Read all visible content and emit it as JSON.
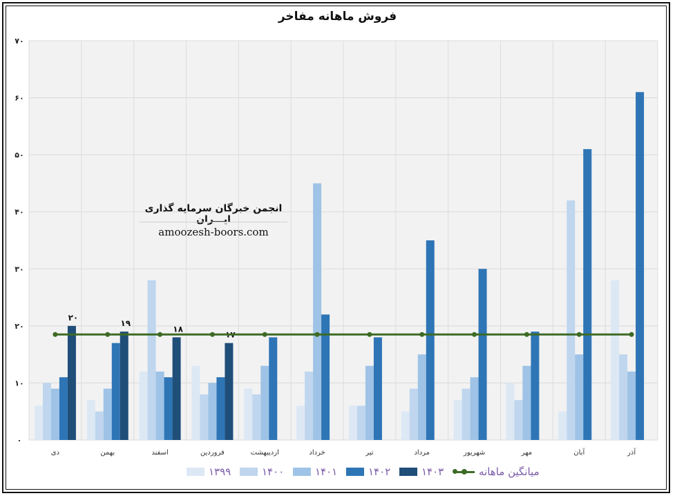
{
  "chart_data": {
    "type": "bar",
    "title": "فروش ماهانه مفاخر",
    "categories": [
      "دی",
      "بهمن",
      "اسفند",
      "فروردین",
      "اردیبهشت",
      "خرداد",
      "تیر",
      "مرداد",
      "شهریور",
      "مهر",
      "آبان",
      "آذر"
    ],
    "series": [
      {
        "name": "۱۳۹۹",
        "color": "#dde8f5",
        "values": [
          6,
          7,
          12,
          13,
          9,
          6,
          6,
          5,
          7,
          10,
          5,
          28
        ]
      },
      {
        "name": "۱۴۰۰",
        "color": "#bfd6ee",
        "values": [
          10,
          5,
          28,
          8,
          8,
          12,
          6,
          9,
          9,
          7,
          42,
          15
        ]
      },
      {
        "name": "۱۴۰۱",
        "color": "#9ec3e6",
        "values": [
          9,
          9,
          12,
          10,
          13,
          45,
          13,
          15,
          11,
          13,
          15,
          12
        ]
      },
      {
        "name": "۱۴۰۲",
        "color": "#2e75b6",
        "values": [
          11,
          17,
          11,
          11,
          18,
          22,
          18,
          35,
          30,
          19,
          51,
          61
        ]
      },
      {
        "name": "۱۴۰۳",
        "color": "#1f4e79",
        "values": [
          20,
          19,
          18,
          17,
          null,
          null,
          null,
          null,
          null,
          null,
          null,
          null
        ]
      }
    ],
    "line_series": {
      "name": "میانگین ماهانه",
      "color": "#3d6b25",
      "value": 18.5
    },
    "data_labels": {
      "series": "۱۴۰۳",
      "values": [
        "۲۰",
        "۱۹",
        "۱۸",
        "۱۷"
      ]
    },
    "y_ticks": [
      "۰",
      "۱۰",
      "۲۰",
      "۳۰",
      "۴۰",
      "۵۰",
      "۶۰",
      "۷۰"
    ],
    "ylim": [
      0,
      70
    ],
    "grid": true,
    "legend_position": "bottom"
  },
  "watermark": {
    "line1": "انجمن خبرگان سرمایه گذاری ایـــران",
    "line2": "amoozesh-boors.com"
  }
}
